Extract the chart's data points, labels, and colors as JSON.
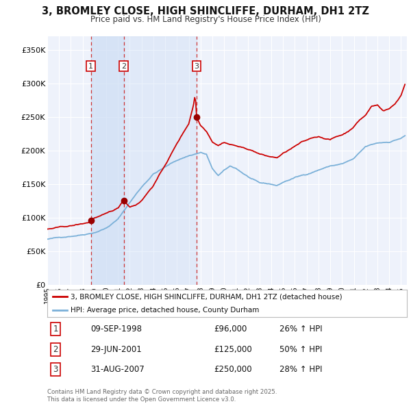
{
  "title": "3, BROMLEY CLOSE, HIGH SHINCLIFFE, DURHAM, DH1 2TZ",
  "subtitle": "Price paid vs. HM Land Registry's House Price Index (HPI)",
  "ylim": [
    0,
    370000
  ],
  "yticks": [
    0,
    50000,
    100000,
    150000,
    200000,
    250000,
    300000,
    350000
  ],
  "ytick_labels": [
    "£0",
    "£50K",
    "£100K",
    "£150K",
    "£200K",
    "£250K",
    "£300K",
    "£350K"
  ],
  "background_color": "#ffffff",
  "plot_background": "#eef2fb",
  "grid_color": "#ffffff",
  "red_line_color": "#cc0000",
  "blue_line_color": "#7ab0d8",
  "sale_marker_color": "#990000",
  "sale_dates": [
    1998.69,
    2001.49,
    2007.66
  ],
  "sale_prices": [
    96000,
    125000,
    250000
  ],
  "sale_labels": [
    "1",
    "2",
    "3"
  ],
  "vline_color": "#cc3333",
  "vspan_color": "#ccddf5",
  "legend_red_label": "3, BROMLEY CLOSE, HIGH SHINCLIFFE, DURHAM, DH1 2TZ (detached house)",
  "legend_blue_label": "HPI: Average price, detached house, County Durham",
  "table_data": [
    [
      "1",
      "09-SEP-1998",
      "£96,000",
      "26% ↑ HPI"
    ],
    [
      "2",
      "29-JUN-2001",
      "£125,000",
      "50% ↑ HPI"
    ],
    [
      "3",
      "31-AUG-2007",
      "£250,000",
      "28% ↑ HPI"
    ]
  ],
  "footer": "Contains HM Land Registry data © Crown copyright and database right 2025.\nThis data is licensed under the Open Government Licence v3.0."
}
